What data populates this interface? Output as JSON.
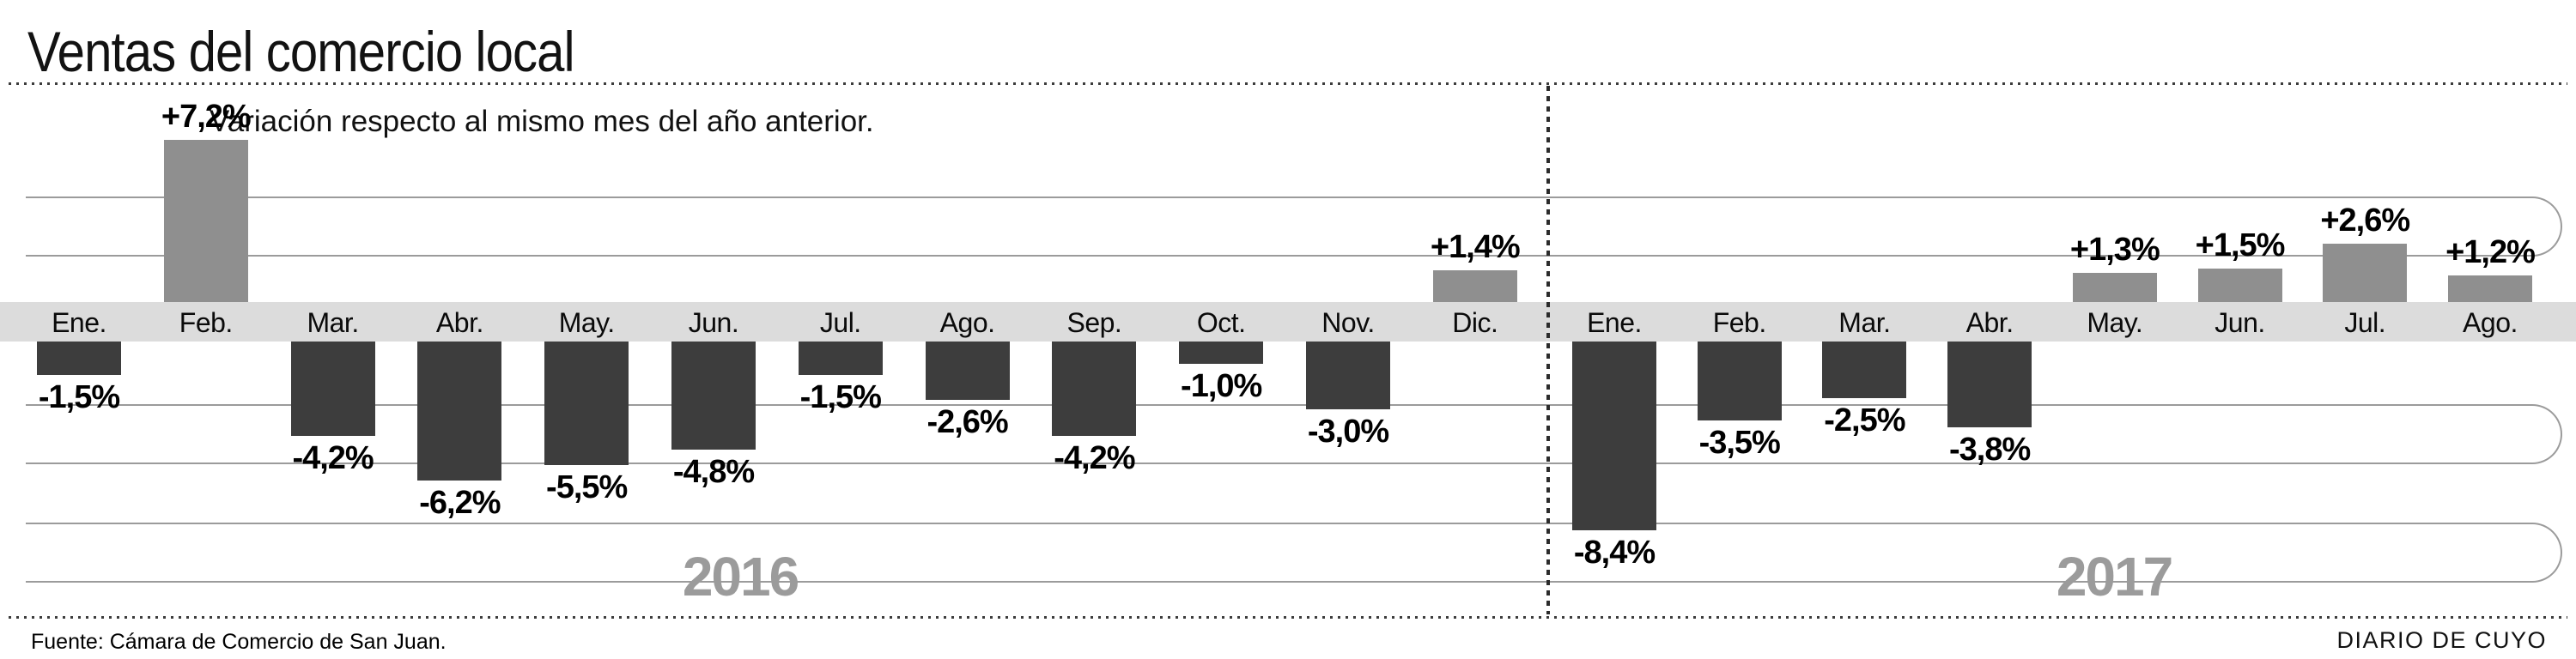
{
  "header": {
    "title": "Ventas del comercio local",
    "subtitle": "Variación respecto al mismo mes del año anterior."
  },
  "footer": {
    "source": "Fuente: Cámara de Comercio de San Juan.",
    "credit": "DIARIO DE CUYO"
  },
  "chart_data": {
    "type": "bar",
    "title": "Ventas del comercio local",
    "subtitle": "Variación respecto al mismo mes del año anterior.",
    "value_unit": "percent",
    "baseline": 0,
    "grid": "horizontal-rounded-tracks",
    "positive_color": "#8f8f8f",
    "negative_color": "#3d3d3d",
    "axis_band_color": "#dcdcdc",
    "year_label_color": "#9b9b9b",
    "groups": [
      {
        "year": "2016",
        "categories": [
          "Ene.",
          "Feb.",
          "Mar.",
          "Abr.",
          "May.",
          "Jun.",
          "Jul.",
          "Ago.",
          "Sep.",
          "Oct.",
          "Nov.",
          "Dic."
        ],
        "values": [
          -1.5,
          7.2,
          -4.2,
          -6.2,
          -5.5,
          -4.8,
          -1.5,
          -2.6,
          -4.2,
          -1.0,
          -3.0,
          1.4
        ],
        "labels": [
          "-1,5%",
          "+7,2%",
          "-4,2%",
          "-6,2%",
          "-5,5%",
          "-4,8%",
          "-1,5%",
          "-2,6%",
          "-4,2%",
          "-1,0%",
          "-3,0%",
          "+1,4%"
        ]
      },
      {
        "year": "2017",
        "categories": [
          "Ene.",
          "Feb.",
          "Mar.",
          "Abr.",
          "May.",
          "Jun.",
          "Jul.",
          "Ago."
        ],
        "values": [
          -8.4,
          -3.5,
          -2.5,
          -3.8,
          1.3,
          1.5,
          2.6,
          1.2
        ],
        "labels": [
          "-8,4%",
          "-3,5%",
          "-2,5%",
          "-3,8%",
          "+1,3%",
          "+1,5%",
          "+2,6%",
          "+1,2%"
        ]
      }
    ]
  }
}
